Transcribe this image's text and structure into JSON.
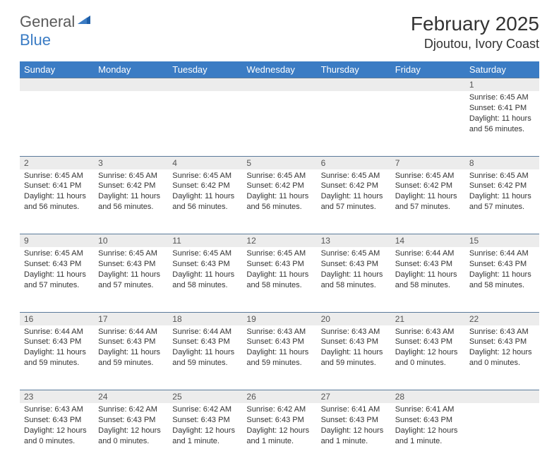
{
  "logo": {
    "text1": "General",
    "text2": "Blue"
  },
  "title": "February 2025",
  "location": "Djoutou, Ivory Coast",
  "day_headers": [
    "Sunday",
    "Monday",
    "Tuesday",
    "Wednesday",
    "Thursday",
    "Friday",
    "Saturday"
  ],
  "colors": {
    "header_bg": "#3b7cc4",
    "header_text": "#ffffff",
    "daynum_bg": "#ececec",
    "row_border": "#5a7a9a",
    "logo_gray": "#5a5a5a",
    "logo_blue": "#3b7cc4"
  },
  "weeks": [
    [
      null,
      null,
      null,
      null,
      null,
      null,
      {
        "n": "1",
        "sunrise": "Sunrise: 6:45 AM",
        "sunset": "Sunset: 6:41 PM",
        "daylight": "Daylight: 11 hours and 56 minutes."
      }
    ],
    [
      {
        "n": "2",
        "sunrise": "Sunrise: 6:45 AM",
        "sunset": "Sunset: 6:41 PM",
        "daylight": "Daylight: 11 hours and 56 minutes."
      },
      {
        "n": "3",
        "sunrise": "Sunrise: 6:45 AM",
        "sunset": "Sunset: 6:42 PM",
        "daylight": "Daylight: 11 hours and 56 minutes."
      },
      {
        "n": "4",
        "sunrise": "Sunrise: 6:45 AM",
        "sunset": "Sunset: 6:42 PM",
        "daylight": "Daylight: 11 hours and 56 minutes."
      },
      {
        "n": "5",
        "sunrise": "Sunrise: 6:45 AM",
        "sunset": "Sunset: 6:42 PM",
        "daylight": "Daylight: 11 hours and 56 minutes."
      },
      {
        "n": "6",
        "sunrise": "Sunrise: 6:45 AM",
        "sunset": "Sunset: 6:42 PM",
        "daylight": "Daylight: 11 hours and 57 minutes."
      },
      {
        "n": "7",
        "sunrise": "Sunrise: 6:45 AM",
        "sunset": "Sunset: 6:42 PM",
        "daylight": "Daylight: 11 hours and 57 minutes."
      },
      {
        "n": "8",
        "sunrise": "Sunrise: 6:45 AM",
        "sunset": "Sunset: 6:42 PM",
        "daylight": "Daylight: 11 hours and 57 minutes."
      }
    ],
    [
      {
        "n": "9",
        "sunrise": "Sunrise: 6:45 AM",
        "sunset": "Sunset: 6:43 PM",
        "daylight": "Daylight: 11 hours and 57 minutes."
      },
      {
        "n": "10",
        "sunrise": "Sunrise: 6:45 AM",
        "sunset": "Sunset: 6:43 PM",
        "daylight": "Daylight: 11 hours and 57 minutes."
      },
      {
        "n": "11",
        "sunrise": "Sunrise: 6:45 AM",
        "sunset": "Sunset: 6:43 PM",
        "daylight": "Daylight: 11 hours and 58 minutes."
      },
      {
        "n": "12",
        "sunrise": "Sunrise: 6:45 AM",
        "sunset": "Sunset: 6:43 PM",
        "daylight": "Daylight: 11 hours and 58 minutes."
      },
      {
        "n": "13",
        "sunrise": "Sunrise: 6:45 AM",
        "sunset": "Sunset: 6:43 PM",
        "daylight": "Daylight: 11 hours and 58 minutes."
      },
      {
        "n": "14",
        "sunrise": "Sunrise: 6:44 AM",
        "sunset": "Sunset: 6:43 PM",
        "daylight": "Daylight: 11 hours and 58 minutes."
      },
      {
        "n": "15",
        "sunrise": "Sunrise: 6:44 AM",
        "sunset": "Sunset: 6:43 PM",
        "daylight": "Daylight: 11 hours and 58 minutes."
      }
    ],
    [
      {
        "n": "16",
        "sunrise": "Sunrise: 6:44 AM",
        "sunset": "Sunset: 6:43 PM",
        "daylight": "Daylight: 11 hours and 59 minutes."
      },
      {
        "n": "17",
        "sunrise": "Sunrise: 6:44 AM",
        "sunset": "Sunset: 6:43 PM",
        "daylight": "Daylight: 11 hours and 59 minutes."
      },
      {
        "n": "18",
        "sunrise": "Sunrise: 6:44 AM",
        "sunset": "Sunset: 6:43 PM",
        "daylight": "Daylight: 11 hours and 59 minutes."
      },
      {
        "n": "19",
        "sunrise": "Sunrise: 6:43 AM",
        "sunset": "Sunset: 6:43 PM",
        "daylight": "Daylight: 11 hours and 59 minutes."
      },
      {
        "n": "20",
        "sunrise": "Sunrise: 6:43 AM",
        "sunset": "Sunset: 6:43 PM",
        "daylight": "Daylight: 11 hours and 59 minutes."
      },
      {
        "n": "21",
        "sunrise": "Sunrise: 6:43 AM",
        "sunset": "Sunset: 6:43 PM",
        "daylight": "Daylight: 12 hours and 0 minutes."
      },
      {
        "n": "22",
        "sunrise": "Sunrise: 6:43 AM",
        "sunset": "Sunset: 6:43 PM",
        "daylight": "Daylight: 12 hours and 0 minutes."
      }
    ],
    [
      {
        "n": "23",
        "sunrise": "Sunrise: 6:43 AM",
        "sunset": "Sunset: 6:43 PM",
        "daylight": "Daylight: 12 hours and 0 minutes."
      },
      {
        "n": "24",
        "sunrise": "Sunrise: 6:42 AM",
        "sunset": "Sunset: 6:43 PM",
        "daylight": "Daylight: 12 hours and 0 minutes."
      },
      {
        "n": "25",
        "sunrise": "Sunrise: 6:42 AM",
        "sunset": "Sunset: 6:43 PM",
        "daylight": "Daylight: 12 hours and 1 minute."
      },
      {
        "n": "26",
        "sunrise": "Sunrise: 6:42 AM",
        "sunset": "Sunset: 6:43 PM",
        "daylight": "Daylight: 12 hours and 1 minute."
      },
      {
        "n": "27",
        "sunrise": "Sunrise: 6:41 AM",
        "sunset": "Sunset: 6:43 PM",
        "daylight": "Daylight: 12 hours and 1 minute."
      },
      {
        "n": "28",
        "sunrise": "Sunrise: 6:41 AM",
        "sunset": "Sunset: 6:43 PM",
        "daylight": "Daylight: 12 hours and 1 minute."
      },
      null
    ]
  ]
}
